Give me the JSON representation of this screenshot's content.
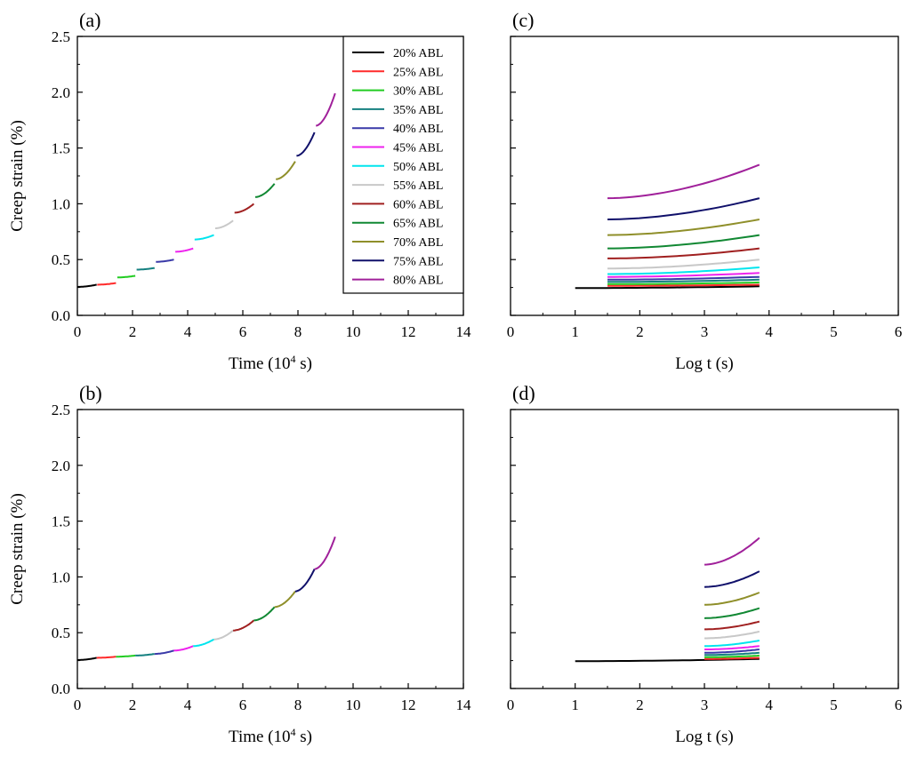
{
  "chart_data": [
    {
      "type": "line",
      "panel_label": "(a)",
      "xlabel": "Time (10^4 s)",
      "ylabel": "Creep strain (%)",
      "xlim": [
        0,
        14
      ],
      "ylim": [
        0,
        2.5
      ],
      "xticks": [
        "0",
        "2",
        "4",
        "6",
        "8",
        "10",
        "12",
        "14"
      ],
      "yticks": [
        "0.0",
        "0.5",
        "1.0",
        "1.5",
        "2.0",
        "2.5"
      ],
      "legend_position": "top-right",
      "series": [
        {
          "name": "20% ABL",
          "x": [
            0.0,
            0.7
          ],
          "y": [
            0.255,
            0.275
          ]
        },
        {
          "name": "25% ABL",
          "x": [
            0.72,
            1.4
          ],
          "y": [
            0.275,
            0.29
          ]
        },
        {
          "name": "30% ABL",
          "x": [
            1.45,
            2.1
          ],
          "y": [
            0.34,
            0.355
          ]
        },
        {
          "name": "35% ABL",
          "x": [
            2.15,
            2.8
          ],
          "y": [
            0.41,
            0.425
          ]
        },
        {
          "name": "40% ABL",
          "x": [
            2.85,
            3.5
          ],
          "y": [
            0.48,
            0.5
          ]
        },
        {
          "name": "45% ABL",
          "x": [
            3.55,
            4.2
          ],
          "y": [
            0.57,
            0.6
          ]
        },
        {
          "name": "50% ABL",
          "x": [
            4.25,
            4.95
          ],
          "y": [
            0.68,
            0.72
          ]
        },
        {
          "name": "55% ABL",
          "x": [
            5.0,
            5.65
          ],
          "y": [
            0.78,
            0.85
          ]
        },
        {
          "name": "60% ABL",
          "x": [
            5.7,
            6.4
          ],
          "y": [
            0.92,
            1.0
          ]
        },
        {
          "name": "65% ABL",
          "x": [
            6.45,
            7.15
          ],
          "y": [
            1.06,
            1.18
          ]
        },
        {
          "name": "70% ABL",
          "x": [
            7.2,
            7.9
          ],
          "y": [
            1.22,
            1.38
          ]
        },
        {
          "name": "75% ABL",
          "x": [
            7.95,
            8.6
          ],
          "y": [
            1.43,
            1.64
          ]
        },
        {
          "name": "80% ABL",
          "x": [
            8.65,
            9.35
          ],
          "y": [
            1.7,
            1.99
          ]
        }
      ]
    },
    {
      "type": "line",
      "panel_label": "(b)",
      "xlabel": "Time (10^4 s)",
      "ylabel": "Creep strain (%)",
      "xlim": [
        0,
        14
      ],
      "ylim": [
        0,
        2.5
      ],
      "xticks": [
        "0",
        "2",
        "4",
        "6",
        "8",
        "10",
        "12",
        "14"
      ],
      "yticks": [
        "0.0",
        "0.5",
        "1.0",
        "1.5",
        "2.0",
        "2.5"
      ],
      "series": [
        {
          "name": "20% ABL",
          "x": [
            0.0,
            0.7
          ],
          "y": [
            0.255,
            0.275
          ]
        },
        {
          "name": "25% ABL",
          "x": [
            0.7,
            1.4
          ],
          "y": [
            0.275,
            0.285
          ]
        },
        {
          "name": "30% ABL",
          "x": [
            1.4,
            2.1
          ],
          "y": [
            0.285,
            0.295
          ]
        },
        {
          "name": "35% ABL",
          "x": [
            2.1,
            2.8
          ],
          "y": [
            0.295,
            0.31
          ]
        },
        {
          "name": "40% ABL",
          "x": [
            2.8,
            3.5
          ],
          "y": [
            0.31,
            0.34
          ]
        },
        {
          "name": "45% ABL",
          "x": [
            3.5,
            4.2
          ],
          "y": [
            0.34,
            0.38
          ]
        },
        {
          "name": "50% ABL",
          "x": [
            4.2,
            4.95
          ],
          "y": [
            0.38,
            0.44
          ]
        },
        {
          "name": "55% ABL",
          "x": [
            4.95,
            5.65
          ],
          "y": [
            0.44,
            0.52
          ]
        },
        {
          "name": "60% ABL",
          "x": [
            5.65,
            6.4
          ],
          "y": [
            0.52,
            0.61
          ]
        },
        {
          "name": "65% ABL",
          "x": [
            6.4,
            7.15
          ],
          "y": [
            0.61,
            0.73
          ]
        },
        {
          "name": "70% ABL",
          "x": [
            7.15,
            7.9
          ],
          "y": [
            0.73,
            0.87
          ]
        },
        {
          "name": "75% ABL",
          "x": [
            7.9,
            8.6
          ],
          "y": [
            0.87,
            1.07
          ]
        },
        {
          "name": "80% ABL",
          "x": [
            8.6,
            9.35
          ],
          "y": [
            1.07,
            1.36
          ]
        }
      ]
    },
    {
      "type": "line",
      "panel_label": "(c)",
      "xlabel": "Log t (s)",
      "ylabel": "",
      "xlim": [
        0,
        6
      ],
      "ylim": [
        0,
        2.5
      ],
      "xticks": [
        "0",
        "1",
        "2",
        "3",
        "4",
        "5",
        "6"
      ],
      "series": [
        {
          "name": "20% ABL",
          "x": [
            1.0,
            3.85
          ],
          "y": [
            0.245,
            0.26
          ]
        },
        {
          "name": "25% ABL",
          "x": [
            1.5,
            3.85
          ],
          "y": [
            0.265,
            0.275
          ]
        },
        {
          "name": "30% ABL",
          "x": [
            1.5,
            3.85
          ],
          "y": [
            0.28,
            0.295
          ]
        },
        {
          "name": "35% ABL",
          "x": [
            1.5,
            3.85
          ],
          "y": [
            0.3,
            0.32
          ]
        },
        {
          "name": "40% ABL",
          "x": [
            1.5,
            3.85
          ],
          "y": [
            0.32,
            0.345
          ]
        },
        {
          "name": "45% ABL",
          "x": [
            1.5,
            3.85
          ],
          "y": [
            0.345,
            0.38
          ]
        },
        {
          "name": "50% ABL",
          "x": [
            1.5,
            3.85
          ],
          "y": [
            0.37,
            0.43
          ]
        },
        {
          "name": "55% ABL",
          "x": [
            1.5,
            3.85
          ],
          "y": [
            0.42,
            0.5
          ]
        },
        {
          "name": "60% ABL",
          "x": [
            1.5,
            3.85
          ],
          "y": [
            0.51,
            0.6
          ]
        },
        {
          "name": "65% ABL",
          "x": [
            1.5,
            3.85
          ],
          "y": [
            0.6,
            0.72
          ]
        },
        {
          "name": "70% ABL",
          "x": [
            1.5,
            3.85
          ],
          "y": [
            0.72,
            0.86
          ]
        },
        {
          "name": "75% ABL",
          "x": [
            1.5,
            3.85
          ],
          "y": [
            0.86,
            1.05
          ]
        },
        {
          "name": "80% ABL",
          "x": [
            1.5,
            3.85
          ],
          "y": [
            1.05,
            1.35
          ]
        }
      ]
    },
    {
      "type": "line",
      "panel_label": "(d)",
      "xlabel": "Log t (s)",
      "ylabel": "",
      "xlim": [
        0,
        6
      ],
      "ylim": [
        0,
        2.5
      ],
      "xticks": [
        "0",
        "1",
        "2",
        "3",
        "4",
        "5",
        "6"
      ],
      "series": [
        {
          "name": "20% ABL",
          "x": [
            1.0,
            3.85
          ],
          "y": [
            0.245,
            0.265
          ]
        },
        {
          "name": "25% ABL",
          "x": [
            3.0,
            3.85
          ],
          "y": [
            0.265,
            0.275
          ]
        },
        {
          "name": "30% ABL",
          "x": [
            3.0,
            3.85
          ],
          "y": [
            0.28,
            0.295
          ]
        },
        {
          "name": "35% ABL",
          "x": [
            3.0,
            3.85
          ],
          "y": [
            0.3,
            0.32
          ]
        },
        {
          "name": "40% ABL",
          "x": [
            3.0,
            3.85
          ],
          "y": [
            0.32,
            0.35
          ]
        },
        {
          "name": "45% ABL",
          "x": [
            3.0,
            3.85
          ],
          "y": [
            0.35,
            0.38
          ]
        },
        {
          "name": "50% ABL",
          "x": [
            3.0,
            3.85
          ],
          "y": [
            0.38,
            0.43
          ]
        },
        {
          "name": "55% ABL",
          "x": [
            3.0,
            3.85
          ],
          "y": [
            0.45,
            0.51
          ]
        },
        {
          "name": "60% ABL",
          "x": [
            3.0,
            3.85
          ],
          "y": [
            0.53,
            0.6
          ]
        },
        {
          "name": "65% ABL",
          "x": [
            3.0,
            3.85
          ],
          "y": [
            0.63,
            0.72
          ]
        },
        {
          "name": "70% ABL",
          "x": [
            3.0,
            3.85
          ],
          "y": [
            0.75,
            0.86
          ]
        },
        {
          "name": "75% ABL",
          "x": [
            3.0,
            3.85
          ],
          "y": [
            0.91,
            1.05
          ]
        },
        {
          "name": "80% ABL",
          "x": [
            3.0,
            3.85
          ],
          "y": [
            1.11,
            1.35
          ]
        }
      ]
    }
  ],
  "legend": {
    "entries": [
      "20% ABL",
      "25% ABL",
      "30% ABL",
      "35% ABL",
      "40% ABL",
      "45% ABL",
      "50% ABL",
      "55% ABL",
      "60% ABL",
      "65% ABL",
      "70% ABL",
      "75% ABL",
      "80% ABL"
    ],
    "colors": [
      "#000000",
      "#ff2a2a",
      "#22cc22",
      "#158080",
      "#3a3aa8",
      "#ee22ee",
      "#00e5ee",
      "#c8c8c8",
      "#a02020",
      "#118833",
      "#8f8f2a",
      "#10106a",
      "#a0209a"
    ]
  }
}
